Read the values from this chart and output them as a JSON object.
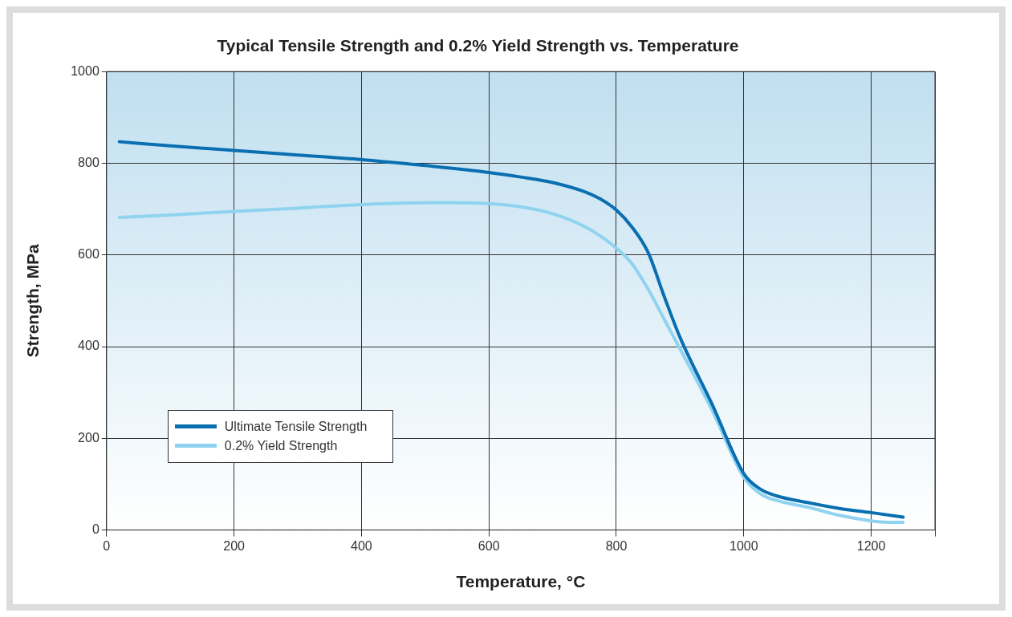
{
  "chart_data": {
    "type": "line",
    "title": "Typical Tensile Strength and 0.2% Yield Strength vs. Temperature",
    "xlabel": "Temperature, °C",
    "ylabel": "Strength, MPa",
    "xlim": [
      0,
      1300
    ],
    "xticks": [
      0,
      200,
      400,
      600,
      800,
      1000,
      1200,
      {
        "value": 1300,
        "label": null
      }
    ],
    "ylim": [
      0,
      1000
    ],
    "yticks": [
      0,
      200,
      400,
      600,
      800,
      1000
    ],
    "grid": true,
    "legend": "bottom left",
    "marker": "none",
    "line_style": "solid",
    "series": [
      {
        "name": "Ultimate Tensile Strength",
        "color": "#0a6fb0",
        "x": [
          20,
          100,
          200,
          300,
          400,
          500,
          600,
          650,
          700,
          750,
          775,
          800,
          825,
          850,
          875,
          900,
          950,
          1000,
          1025,
          1050,
          1100,
          1150,
          1200,
          1250
        ],
        "values": [
          847,
          838,
          828,
          818,
          808,
          795,
          780,
          770,
          758,
          738,
          722,
          698,
          660,
          605,
          510,
          420,
          275,
          123,
          90,
          75,
          60,
          47,
          38,
          28
        ]
      },
      {
        "name": "0.2% Yield Strength",
        "color": "#8fd3f0",
        "x": [
          20,
          100,
          200,
          300,
          400,
          525,
          600,
          650,
          700,
          750,
          800,
          825,
          850,
          875,
          900,
          950,
          1000,
          1025,
          1050,
          1100,
          1150,
          1200,
          1225,
          1250
        ],
        "values": [
          682,
          687,
          695,
          702,
          710,
          714,
          712,
          705,
          690,
          662,
          615,
          580,
          525,
          460,
          395,
          262,
          115,
          80,
          65,
          50,
          32,
          20,
          17,
          17
        ]
      }
    ]
  }
}
